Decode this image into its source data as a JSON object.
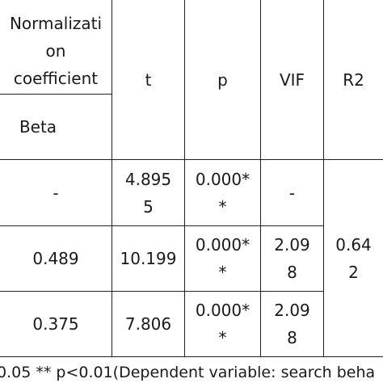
{
  "header": {
    "normalization_coefficient": "Normalizati\non\ncoefficient",
    "beta": "Beta",
    "t": "t",
    "p": "p",
    "vif": "VIF",
    "r2": "R2"
  },
  "rows": [
    {
      "beta": "-",
      "t": "4.895\n5",
      "p": "0.000*\n*",
      "vif": "-"
    },
    {
      "beta": "0.489",
      "t": "10.199",
      "p": "0.000*\n*",
      "vif": "2.09\n8"
    },
    {
      "beta": "0.375",
      "t": "7.806",
      "p": "0.000*\n*",
      "vif": "2.09\n8"
    }
  ],
  "r2_value": "0.64\n2",
  "footnote": "0.05 ** p<0.01(Dependent variable: search beha"
}
